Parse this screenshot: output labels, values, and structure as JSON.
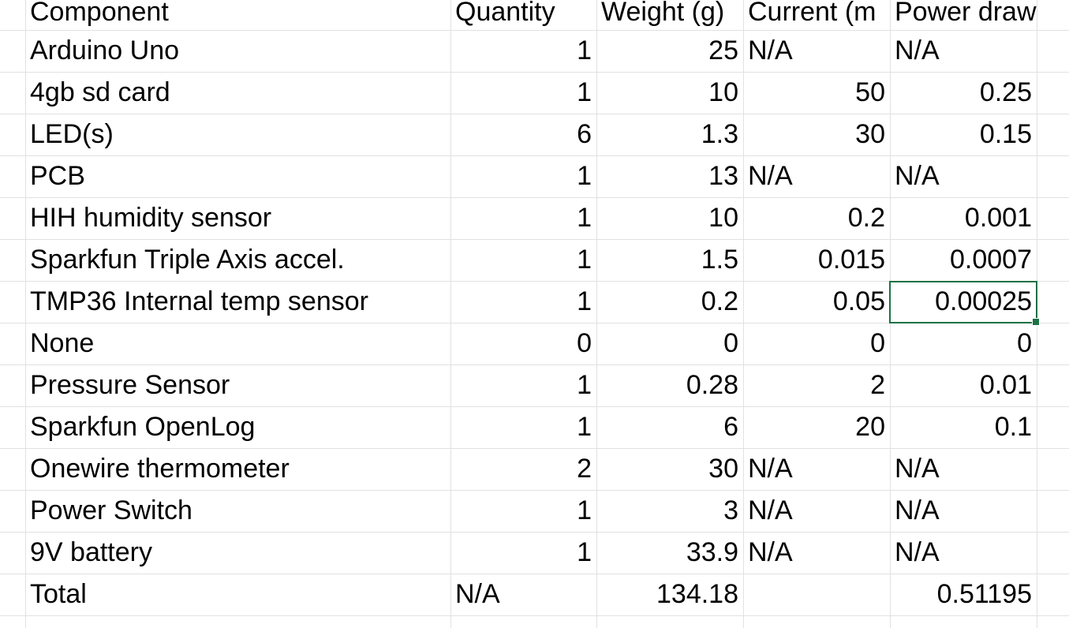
{
  "sheet": {
    "headers": [
      "Component",
      "Quantity",
      "Weight (g)",
      "Current (m",
      "Power draw (W"
    ],
    "rows": [
      [
        "Arduino Uno",
        "1",
        "25",
        "N/A",
        "N/A"
      ],
      [
        "4gb sd card",
        "1",
        "10",
        "50",
        "0.25"
      ],
      [
        "LED(s)",
        "6",
        "1.3",
        "30",
        "0.15"
      ],
      [
        "PCB",
        "1",
        "13",
        "N/A",
        "N/A"
      ],
      [
        "HIH humidity sensor",
        "1",
        "10",
        "0.2",
        "0.001"
      ],
      [
        "Sparkfun Triple Axis accel.",
        "1",
        "1.5",
        "0.015",
        "0.0007"
      ],
      [
        "TMP36 Internal temp sensor",
        "1",
        "0.2",
        "0.05",
        "0.00025"
      ],
      [
        "None",
        "0",
        "0",
        "0",
        "0"
      ],
      [
        "Pressure Sensor",
        "1",
        "0.28",
        "2",
        "0.01"
      ],
      [
        "Sparkfun OpenLog",
        "1",
        "6",
        "20",
        "0.1"
      ],
      [
        "Onewire thermometer",
        "2",
        "30",
        "N/A",
        "N/A"
      ],
      [
        "Power Switch",
        "1",
        "3",
        "N/A",
        "N/A"
      ],
      [
        "9V battery",
        "1",
        "33.9",
        "N/A",
        "N/A"
      ],
      [
        "Total",
        "N/A",
        "134.18",
        "",
        "0.51195"
      ]
    ],
    "selected_cell": {
      "row": 6,
      "col": 4
    },
    "colors": {
      "gridline": "#e1e1e1",
      "selection": "#1e7145",
      "text": "#000000",
      "background": "#ffffff"
    }
  }
}
